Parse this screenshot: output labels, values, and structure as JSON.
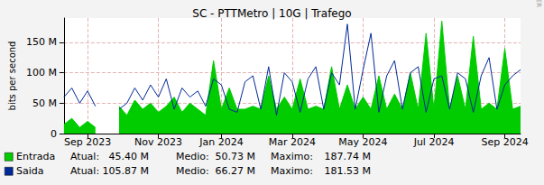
{
  "chart_data": {
    "type": "area",
    "title": "SC - PTTMetro | 10G | Trafego",
    "y_label": "bits per second",
    "side_text": "RRDTOOL / TOBI OETIKER",
    "categories": [
      null,
      null,
      null,
      "Sep 2023",
      null,
      null,
      null,
      null,
      null,
      null,
      null,
      null,
      "Nov 2023",
      null,
      null,
      null,
      null,
      null,
      null,
      null,
      "Jan 2024",
      null,
      null,
      null,
      null,
      null,
      null,
      null,
      null,
      "Mar 2024",
      null,
      null,
      null,
      null,
      null,
      null,
      null,
      null,
      "May 2024",
      null,
      null,
      null,
      null,
      null,
      null,
      null,
      null,
      "Jul 2024",
      null,
      null,
      null,
      null,
      null,
      null,
      null,
      null,
      "Sep 2024",
      null,
      null
    ],
    "series": [
      {
        "name": "Entrada",
        "type": "area",
        "color": "#00cc00",
        "stats": [
          {
            "label": "Atual:",
            "value": "45.40 M"
          },
          {
            "label": "Medio:",
            "value": "50.73 M"
          },
          {
            "label": "Maximo:",
            "value": "187.74 M"
          }
        ],
        "values": [
          15,
          25,
          10,
          20,
          10,
          null,
          null,
          45,
          30,
          55,
          40,
          50,
          35,
          45,
          60,
          35,
          50,
          40,
          30,
          120,
          40,
          75,
          40,
          40,
          45,
          40,
          95,
          40,
          60,
          40,
          90,
          40,
          45,
          40,
          110,
          40,
          80,
          40,
          60,
          40,
          95,
          40,
          65,
          40,
          100,
          40,
          165,
          40,
          185,
          40,
          95,
          40,
          160,
          40,
          50,
          40,
          140,
          40,
          45
        ]
      },
      {
        "name": "Saida",
        "type": "line",
        "color": "#002a97",
        "stats": [
          {
            "label": "Atual:",
            "value": "105.87 M"
          },
          {
            "label": "Medio:",
            "value": "66.27 M"
          },
          {
            "label": "Maximo:",
            "value": "181.53 M"
          }
        ],
        "values": [
          60,
          75,
          50,
          70,
          45,
          null,
          null,
          40,
          50,
          75,
          55,
          80,
          60,
          90,
          40,
          75,
          60,
          70,
          45,
          90,
          80,
          40,
          35,
          85,
          95,
          40,
          110,
          30,
          100,
          85,
          35,
          90,
          110,
          40,
          100,
          80,
          180,
          40,
          105,
          165,
          35,
          95,
          120,
          40,
          100,
          110,
          35,
          90,
          95,
          40,
          100,
          90,
          35,
          95,
          125,
          40,
          80,
          95,
          105
        ]
      }
    ],
    "ylim": [
      0,
      190
    ],
    "yticks": [
      0,
      {
        "value": 50,
        "label": "50 M"
      },
      {
        "value": 100,
        "label": "100 M"
      },
      {
        "value": 150,
        "label": "150 M"
      }
    ],
    "grid": true
  }
}
